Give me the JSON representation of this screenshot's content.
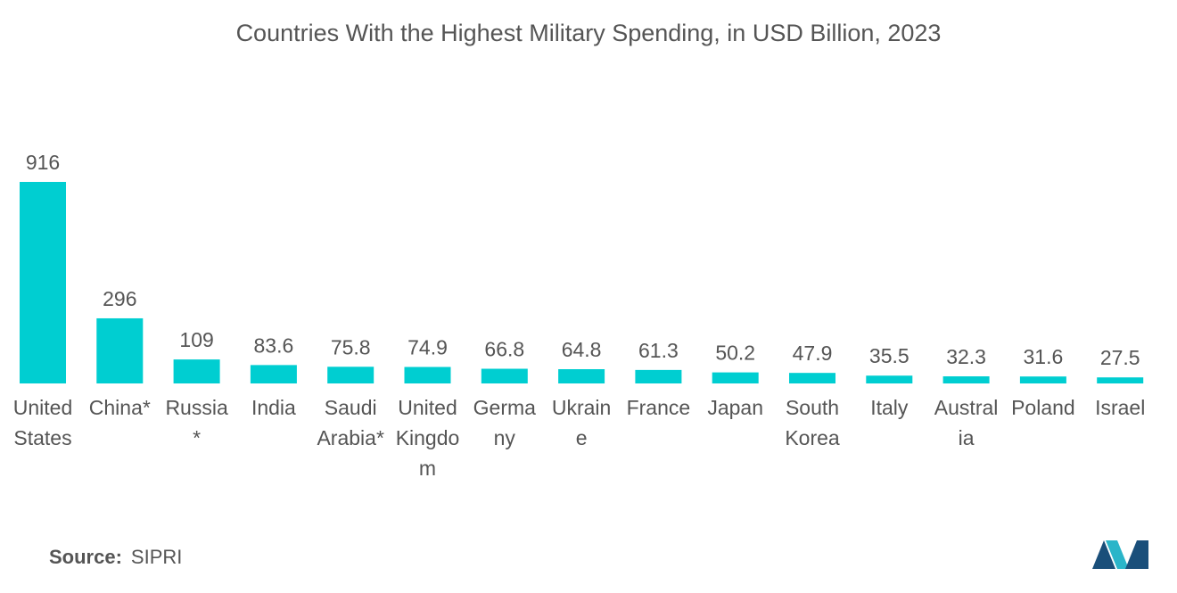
{
  "chart_data": {
    "type": "bar",
    "title": "Countries With the Highest Military Spending, in USD Billion, 2023",
    "categories": [
      "United States",
      "China*",
      "Russia*",
      "India",
      "Saudi Arabia*",
      "United Kingdom",
      "Germany",
      "Ukraine",
      "France",
      "Japan",
      "South Korea",
      "Italy",
      "Australia",
      "Poland",
      "Israel"
    ],
    "values": [
      916,
      296,
      109,
      83.6,
      75.8,
      74.9,
      66.8,
      64.8,
      61.3,
      50.2,
      47.9,
      35.5,
      32.3,
      31.6,
      27.5
    ],
    "color": "#00ced1",
    "source_label": "Source:",
    "source": "SIPRI"
  }
}
